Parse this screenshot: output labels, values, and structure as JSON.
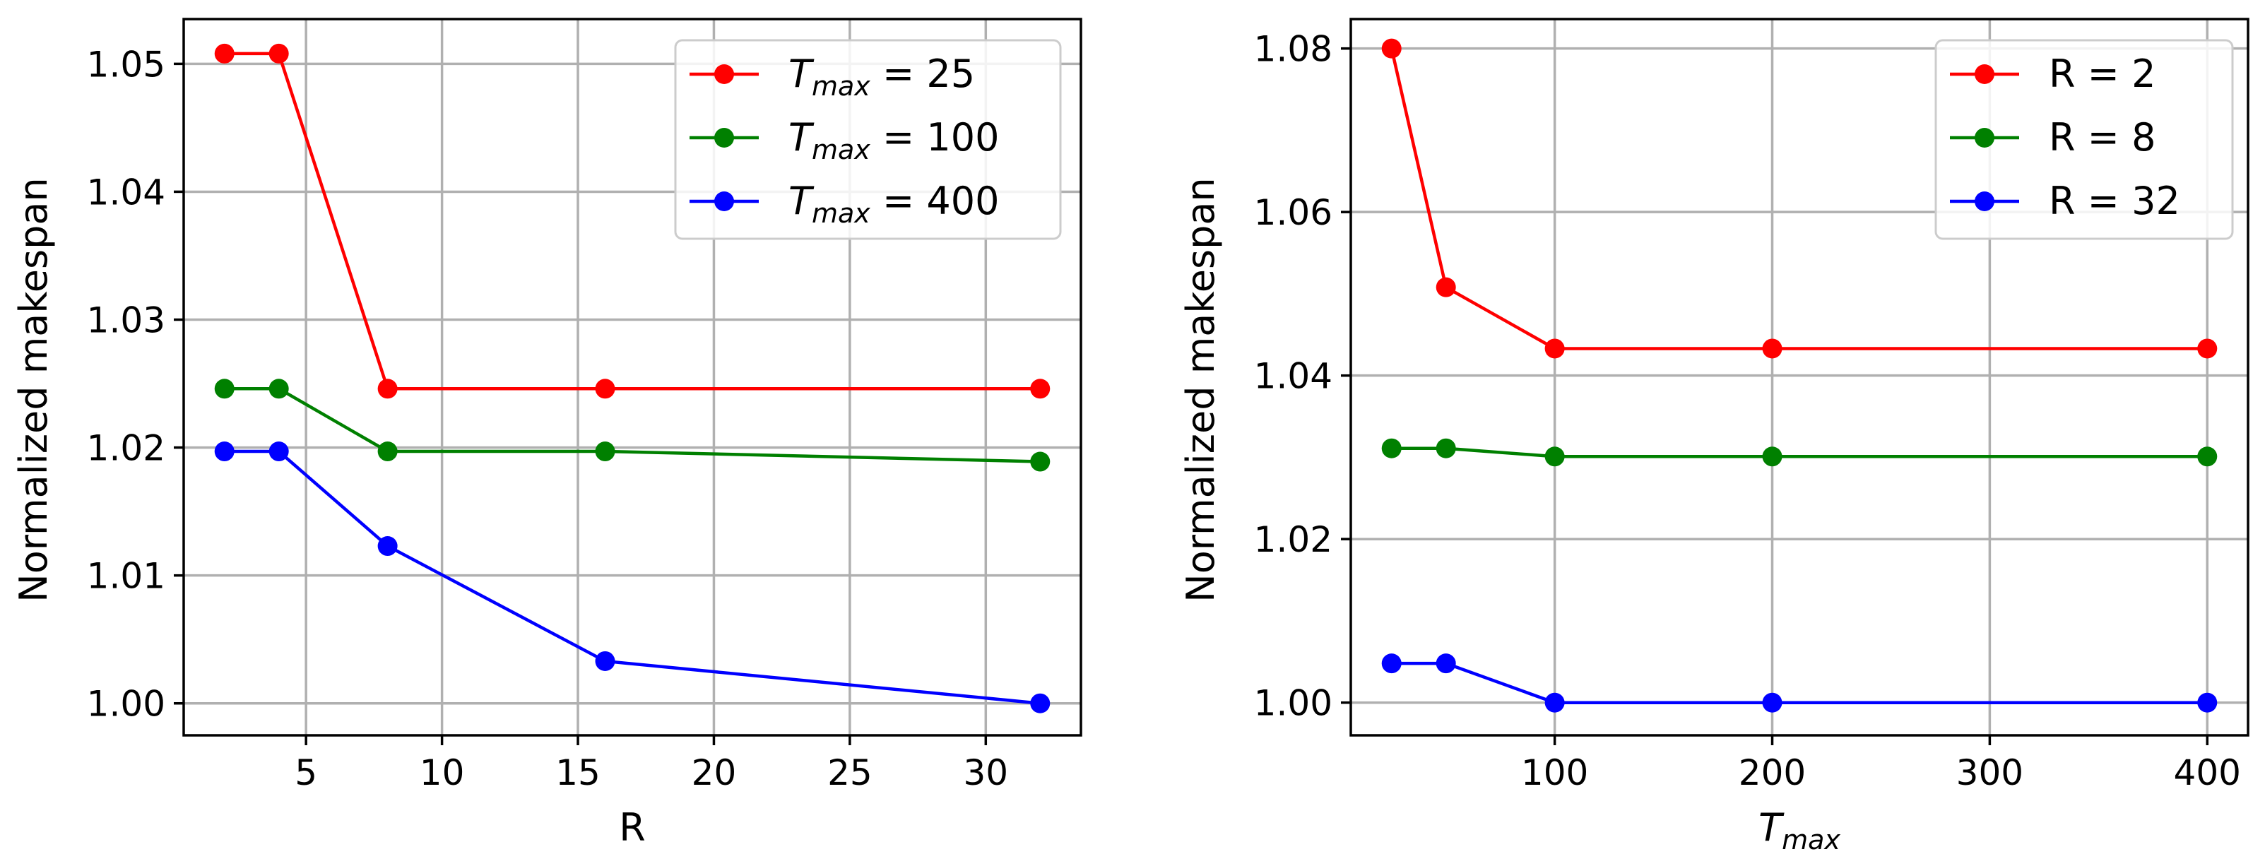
{
  "chart_data": [
    {
      "type": "line",
      "title": "",
      "xlabel": "R",
      "ylabel": "Normalized makespan",
      "xlim": [
        0.5,
        33.5
      ],
      "ylim": [
        0.9975,
        1.0535
      ],
      "xticks": [
        5,
        10,
        15,
        20,
        25,
        30
      ],
      "xtick_labels": [
        "5",
        "10",
        "15",
        "20",
        "25",
        "30"
      ],
      "yticks": [
        1.0,
        1.01,
        1.02,
        1.03,
        1.04,
        1.05
      ],
      "ytick_labels": [
        "1.00",
        "1.01",
        "1.02",
        "1.03",
        "1.04",
        "1.05"
      ],
      "grid": true,
      "legend_position": "top-right",
      "series": [
        {
          "name": "T_max = 25",
          "label_base": "T",
          "label_sub": "max",
          "label_rest": " = 25",
          "color": "#ff0000",
          "x": [
            2,
            4,
            8,
            16,
            32
          ],
          "y": [
            1.0508,
            1.0508,
            1.0246,
            1.0246,
            1.0246
          ]
        },
        {
          "name": "T_max = 100",
          "label_base": "T",
          "label_sub": "max",
          "label_rest": " = 100",
          "color": "#008000",
          "x": [
            2,
            4,
            8,
            16,
            32
          ],
          "y": [
            1.0246,
            1.0246,
            1.0197,
            1.0197,
            1.0189
          ]
        },
        {
          "name": "T_max = 400",
          "label_base": "T",
          "label_sub": "max",
          "label_rest": " = 400",
          "color": "#0000ff",
          "x": [
            2,
            4,
            8,
            16,
            32
          ],
          "y": [
            1.0197,
            1.0197,
            1.0123,
            1.0033,
            1.0
          ]
        }
      ]
    },
    {
      "type": "line",
      "title": "",
      "xlabel": "T_max",
      "xlabel_base": "T",
      "xlabel_sub": "max",
      "ylabel": "Normalized makespan",
      "xlim": [
        6.25,
        418.75
      ],
      "ylim": [
        0.996,
        1.0836
      ],
      "xticks": [
        100,
        200,
        300,
        400
      ],
      "xtick_labels": [
        "100",
        "200",
        "300",
        "400"
      ],
      "yticks": [
        1.0,
        1.02,
        1.04,
        1.06,
        1.08
      ],
      "ytick_labels": [
        "1.00",
        "1.02",
        "1.04",
        "1.06",
        "1.08"
      ],
      "grid": true,
      "legend_position": "top-right",
      "series": [
        {
          "name": "R = 2",
          "label_base": "R = 2",
          "label_sub": "",
          "label_rest": "",
          "color": "#ff0000",
          "x": [
            25,
            50,
            100,
            200,
            400
          ],
          "y": [
            1.08,
            1.0508,
            1.0433,
            1.0433,
            1.0433
          ]
        },
        {
          "name": "R = 8",
          "label_base": "R = 8",
          "label_sub": "",
          "label_rest": "",
          "color": "#008000",
          "x": [
            25,
            50,
            100,
            200,
            400
          ],
          "y": [
            1.0311,
            1.0311,
            1.0301,
            1.0301,
            1.0301
          ]
        },
        {
          "name": "R = 32",
          "label_base": "R = 32",
          "label_sub": "",
          "label_rest": "",
          "color": "#0000ff",
          "x": [
            25,
            50,
            100,
            200,
            400
          ],
          "y": [
            1.0048,
            1.0048,
            1.0,
            1.0,
            1.0
          ]
        }
      ]
    }
  ]
}
